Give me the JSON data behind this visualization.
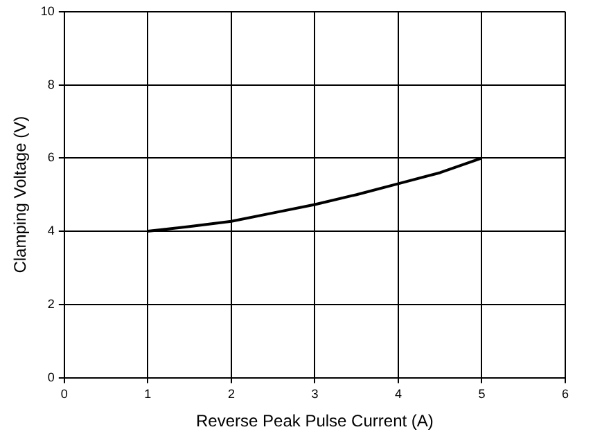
{
  "chart_data": {
    "type": "line",
    "xlabel": "Reverse Peak Pulse Current (A)",
    "ylabel": "Clamping Voltage (V)",
    "x": [
      1,
      1.5,
      2,
      2.5,
      3,
      3.5,
      4,
      4.5,
      5
    ],
    "series": [
      {
        "color": "#000000",
        "values": [
          4,
          4.13,
          4.27,
          4.5,
          4.73,
          5,
          5.3,
          5.6,
          6
        ]
      }
    ],
    "xlim": [
      0,
      6
    ],
    "xticks": [
      0,
      1,
      2,
      3,
      4,
      5,
      6
    ],
    "ylim": [
      0,
      10
    ],
    "yticks": [
      0,
      2,
      4,
      6,
      8,
      10
    ],
    "grid": true,
    "legend": false,
    "marker": "none",
    "line_style": "solid"
  }
}
